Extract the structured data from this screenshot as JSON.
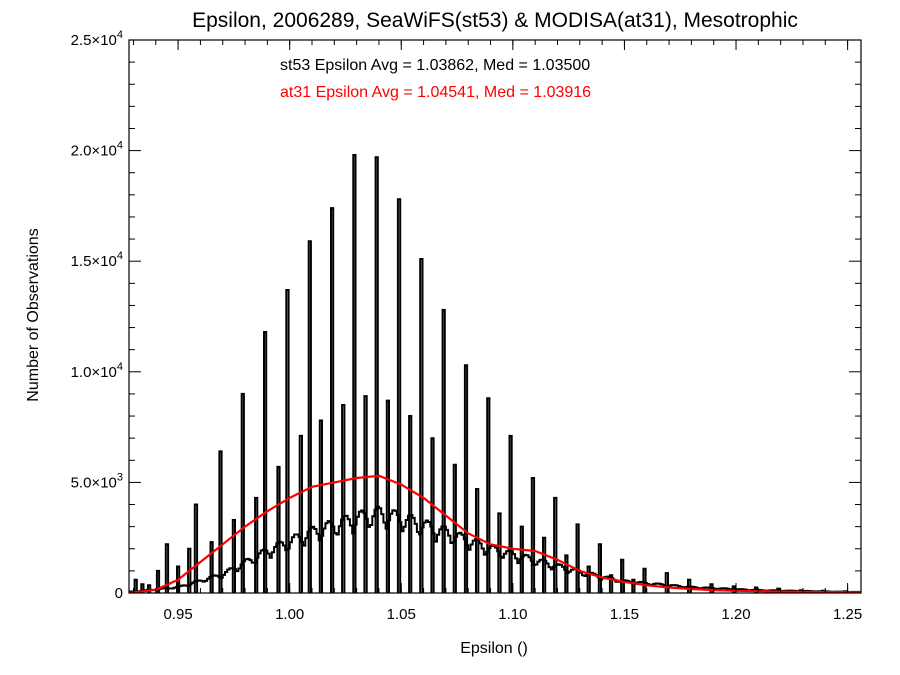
{
  "chart_data": {
    "type": "bar",
    "title": "Epsilon, 2006289, SeaWiFS(st53) & MODISA(at31), Mesotrophic",
    "xlabel": "Epsilon ()",
    "ylabel": "Number of Observations",
    "xlim": [
      0.928,
      1.256
    ],
    "ylim": [
      0,
      25000
    ],
    "x_ticks": [
      0.95,
      1.0,
      1.05,
      1.1,
      1.15,
      1.2,
      1.25
    ],
    "x_tick_labels": [
      "0.95",
      "1.00",
      "1.05",
      "1.10",
      "1.15",
      "1.20",
      "1.25"
    ],
    "y_ticks": [
      {
        "value": 0,
        "mantissa": "0",
        "exponent": ""
      },
      {
        "value": 5000,
        "mantissa": "5.0×10",
        "exponent": "3"
      },
      {
        "value": 10000,
        "mantissa": "1.0×10",
        "exponent": "4"
      },
      {
        "value": 15000,
        "mantissa": "1.5×10",
        "exponent": "4"
      },
      {
        "value": 20000,
        "mantissa": "2.0×10",
        "exponent": "4"
      },
      {
        "value": 25000,
        "mantissa": "2.5×10",
        "exponent": "4"
      }
    ],
    "annotations": [
      {
        "text": "st53 Epsilon Avg = 1.03862, Med = 1.03500",
        "color": "#000000"
      },
      {
        "text": "at31 Epsilon Avg = 1.04541, Med = 1.03916",
        "color": "#ff0000"
      }
    ],
    "series": [
      {
        "name": "st53",
        "color": "#000000",
        "style": "step-histogram",
        "bin_width": 0.001,
        "peaks": [
          {
            "x": 0.931,
            "y": 600
          },
          {
            "x": 0.934,
            "y": 400
          },
          {
            "x": 0.937,
            "y": 350
          },
          {
            "x": 0.941,
            "y": 1000
          },
          {
            "x": 0.945,
            "y": 2200
          },
          {
            "x": 0.95,
            "y": 1200
          },
          {
            "x": 0.955,
            "y": 2000
          },
          {
            "x": 0.958,
            "y": 4000
          },
          {
            "x": 0.965,
            "y": 2300
          },
          {
            "x": 0.969,
            "y": 6400
          },
          {
            "x": 0.975,
            "y": 3300
          },
          {
            "x": 0.979,
            "y": 9000
          },
          {
            "x": 0.985,
            "y": 4300
          },
          {
            "x": 0.989,
            "y": 11800
          },
          {
            "x": 0.995,
            "y": 5700
          },
          {
            "x": 0.999,
            "y": 13700
          },
          {
            "x": 1.005,
            "y": 7100
          },
          {
            "x": 1.009,
            "y": 15900
          },
          {
            "x": 1.014,
            "y": 7800
          },
          {
            "x": 1.019,
            "y": 17400
          },
          {
            "x": 1.024,
            "y": 8500
          },
          {
            "x": 1.029,
            "y": 19800
          },
          {
            "x": 1.034,
            "y": 8900
          },
          {
            "x": 1.039,
            "y": 19700
          },
          {
            "x": 1.044,
            "y": 8700
          },
          {
            "x": 1.049,
            "y": 17800
          },
          {
            "x": 1.054,
            "y": 8000
          },
          {
            "x": 1.059,
            "y": 15100
          },
          {
            "x": 1.064,
            "y": 7000
          },
          {
            "x": 1.069,
            "y": 12800
          },
          {
            "x": 1.074,
            "y": 5800
          },
          {
            "x": 1.079,
            "y": 10300
          },
          {
            "x": 1.084,
            "y": 4700
          },
          {
            "x": 1.089,
            "y": 8800
          },
          {
            "x": 1.094,
            "y": 3600
          },
          {
            "x": 1.099,
            "y": 7100
          },
          {
            "x": 1.104,
            "y": 3000
          },
          {
            "x": 1.109,
            "y": 5200
          },
          {
            "x": 1.114,
            "y": 2500
          },
          {
            "x": 1.119,
            "y": 4300
          },
          {
            "x": 1.124,
            "y": 1700
          },
          {
            "x": 1.129,
            "y": 3100
          },
          {
            "x": 1.134,
            "y": 1200
          },
          {
            "x": 1.139,
            "y": 2200
          },
          {
            "x": 1.144,
            "y": 800
          },
          {
            "x": 1.149,
            "y": 1500
          },
          {
            "x": 1.154,
            "y": 600
          },
          {
            "x": 1.159,
            "y": 1100
          },
          {
            "x": 1.169,
            "y": 900
          },
          {
            "x": 1.179,
            "y": 600
          },
          {
            "x": 1.189,
            "y": 400
          },
          {
            "x": 1.199,
            "y": 300
          },
          {
            "x": 1.209,
            "y": 250
          },
          {
            "x": 1.219,
            "y": 200
          },
          {
            "x": 1.229,
            "y": 120
          },
          {
            "x": 1.239,
            "y": 100
          },
          {
            "x": 1.249,
            "y": 80
          }
        ],
        "background": [
          {
            "x": 0.93,
            "y": 60
          },
          {
            "x": 0.95,
            "y": 250
          },
          {
            "x": 0.97,
            "y": 800
          },
          {
            "x": 0.99,
            "y": 1800
          },
          {
            "x": 1.01,
            "y": 2600
          },
          {
            "x": 1.03,
            "y": 3200
          },
          {
            "x": 1.04,
            "y": 3400
          },
          {
            "x": 1.05,
            "y": 3200
          },
          {
            "x": 1.07,
            "y": 2600
          },
          {
            "x": 1.09,
            "y": 1900
          },
          {
            "x": 1.11,
            "y": 1400
          },
          {
            "x": 1.13,
            "y": 900
          },
          {
            "x": 1.15,
            "y": 500
          },
          {
            "x": 1.18,
            "y": 250
          },
          {
            "x": 1.21,
            "y": 120
          },
          {
            "x": 1.256,
            "y": 40
          }
        ]
      },
      {
        "name": "at31",
        "color": "#ff0000",
        "style": "line",
        "points": [
          {
            "x": 0.928,
            "y": 0
          },
          {
            "x": 0.94,
            "y": 150
          },
          {
            "x": 0.95,
            "y": 600
          },
          {
            "x": 0.96,
            "y": 1400
          },
          {
            "x": 0.97,
            "y": 2200
          },
          {
            "x": 0.98,
            "y": 3000
          },
          {
            "x": 0.99,
            "y": 3700
          },
          {
            "x": 1.0,
            "y": 4300
          },
          {
            "x": 1.01,
            "y": 4800
          },
          {
            "x": 1.02,
            "y": 5000
          },
          {
            "x": 1.03,
            "y": 5200
          },
          {
            "x": 1.04,
            "y": 5300
          },
          {
            "x": 1.05,
            "y": 4900
          },
          {
            "x": 1.06,
            "y": 4300
          },
          {
            "x": 1.07,
            "y": 3500
          },
          {
            "x": 1.08,
            "y": 2700
          },
          {
            "x": 1.09,
            "y": 2200
          },
          {
            "x": 1.1,
            "y": 2000
          },
          {
            "x": 1.11,
            "y": 1900
          },
          {
            "x": 1.12,
            "y": 1500
          },
          {
            "x": 1.13,
            "y": 1000
          },
          {
            "x": 1.14,
            "y": 700
          },
          {
            "x": 1.15,
            "y": 500
          },
          {
            "x": 1.16,
            "y": 350
          },
          {
            "x": 1.17,
            "y": 250
          },
          {
            "x": 1.18,
            "y": 180
          },
          {
            "x": 1.19,
            "y": 130
          },
          {
            "x": 1.2,
            "y": 100
          },
          {
            "x": 1.21,
            "y": 80
          },
          {
            "x": 1.22,
            "y": 60
          },
          {
            "x": 1.23,
            "y": 50
          },
          {
            "x": 1.24,
            "y": 40
          },
          {
            "x": 1.256,
            "y": 30
          }
        ]
      }
    ]
  }
}
